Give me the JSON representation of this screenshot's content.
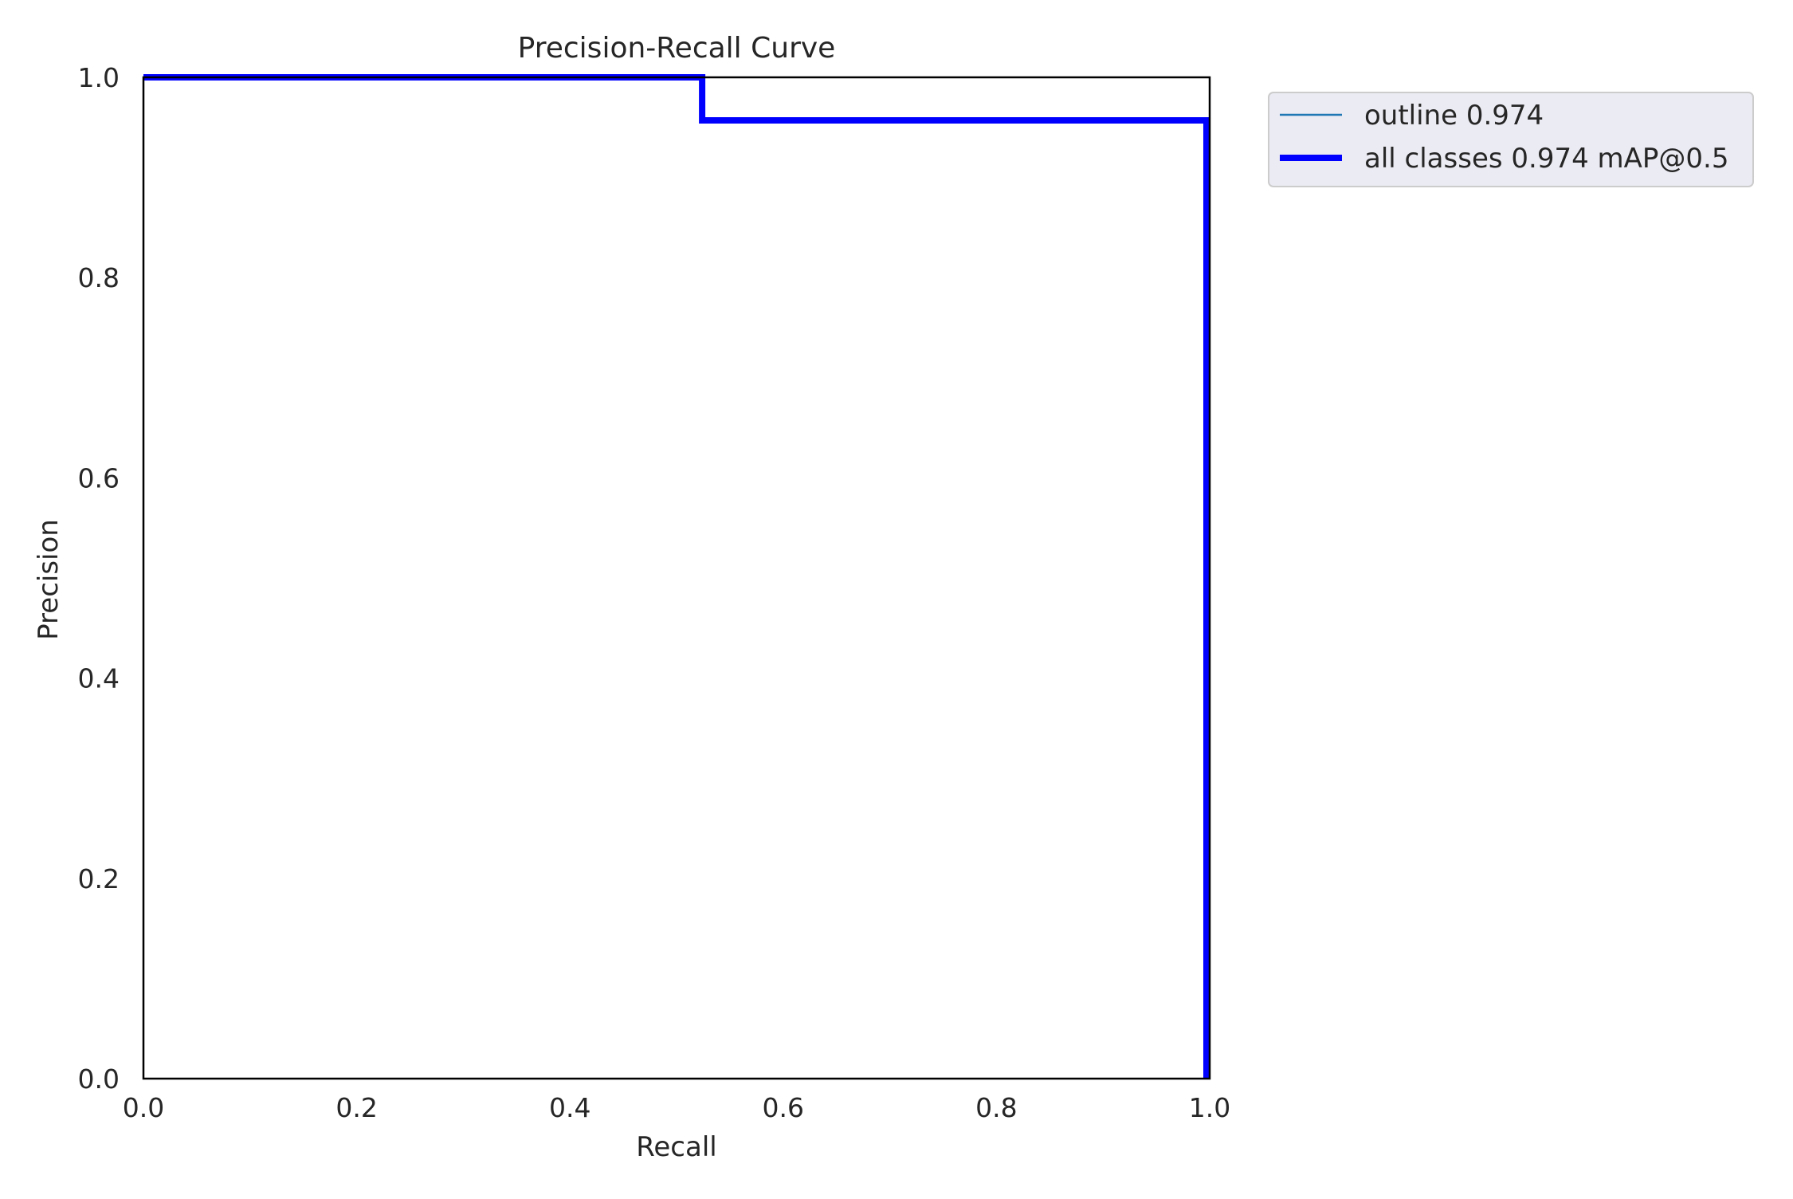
{
  "chart_data": {
    "type": "line",
    "title": "Precision-Recall Curve",
    "xlabel": "Recall",
    "ylabel": "Precision",
    "xlim": [
      0,
      1
    ],
    "ylim": [
      0,
      1
    ],
    "x_ticks": [
      "0.0",
      "0.2",
      "0.4",
      "0.6",
      "0.8",
      "1.0"
    ],
    "x_tick_values": [
      0,
      0.2,
      0.4,
      0.6,
      0.8,
      1.0
    ],
    "y_ticks": [
      "0.0",
      "0.2",
      "0.4",
      "0.6",
      "0.8",
      "1.0"
    ],
    "y_tick_values": [
      0,
      0.2,
      0.4,
      0.6,
      0.8,
      1.0
    ],
    "grid": false,
    "legend_placement": "outside right, top",
    "series": [
      {
        "name": "outline 0.974",
        "color": "#1f77b4",
        "style": "thin",
        "x": [
          0.0,
          0.524,
          0.524,
          0.997,
          0.997
        ],
        "y": [
          1.0,
          1.0,
          0.957,
          0.957,
          0.0
        ]
      },
      {
        "name": "all classes 0.974 mAP@0.5",
        "color": "#0000ff",
        "style": "thick",
        "x": [
          0.0,
          0.524,
          0.524,
          0.997,
          0.997
        ],
        "y": [
          1.0,
          1.0,
          0.957,
          0.957,
          0.0
        ]
      }
    ]
  }
}
